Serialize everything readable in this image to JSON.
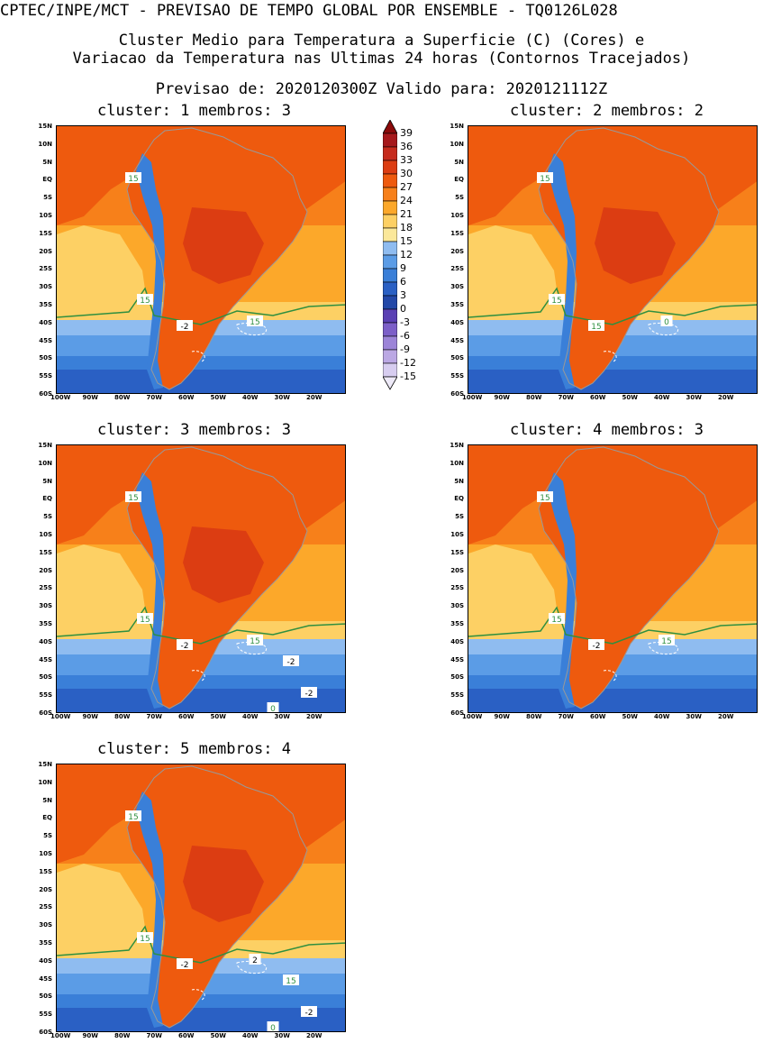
{
  "header": {
    "line1": "CPTEC/INPE/MCT - PREVISAO DE TEMPO GLOBAL POR ENSEMBLE - TQ0126L028",
    "line2": "Cluster Medio para Temperatura a Superficie (C) (Cores) e",
    "line3": "Variacao da Temperatura nas Ultimas 24 horas (Contornos Tracejados)",
    "line4": "Previsao de: 2020120300Z    Valido para: 2020121112Z"
  },
  "panels": [
    {
      "title": "cluster: 1   membros: 3",
      "labels": [
        "15",
        "15",
        "-2",
        "15"
      ]
    },
    {
      "title": "cluster: 2   membros: 2",
      "labels": [
        "15",
        "15",
        "15",
        "0"
      ]
    },
    {
      "title": "cluster: 3   membros: 3",
      "labels": [
        "15",
        "15",
        "-2",
        "15",
        "-2",
        "-2",
        "0"
      ]
    },
    {
      "title": "cluster: 4   membros: 3",
      "labels": [
        "15",
        "15",
        "-2",
        "15"
      ]
    },
    {
      "title": "cluster: 5   membros: 4",
      "labels": [
        "15",
        "15",
        "-2",
        "2",
        "15",
        "-2",
        "0"
      ]
    }
  ],
  "axes": {
    "y_ticks": [
      "15N",
      "10N",
      "5N",
      "EQ",
      "5S",
      "10S",
      "15S",
      "20S",
      "25S",
      "30S",
      "35S",
      "40S",
      "45S",
      "50S",
      "55S",
      "60S"
    ],
    "x_ticks": [
      "100W",
      "90W",
      "80W",
      "70W",
      "60W",
      "50W",
      "40W",
      "30W",
      "20W"
    ]
  },
  "colorbar": {
    "levels": [
      "39",
      "36",
      "33",
      "30",
      "27",
      "24",
      "21",
      "18",
      "15",
      "12",
      "9",
      "6",
      "3",
      "0",
      "-3",
      "-6",
      "-9",
      "-12",
      "-15"
    ],
    "colors": [
      "#8b0a0a",
      "#a6191c",
      "#c62b1d",
      "#dc3d12",
      "#ee5a0e",
      "#f7801a",
      "#fca82a",
      "#fdd064",
      "#fbe89a",
      "#8fbcf0",
      "#5b9ce6",
      "#3a7fd8",
      "#2a60c4",
      "#2348a8",
      "#5a40b4",
      "#7c5fc8",
      "#9c84d8",
      "#bba8e4",
      "#d7cdf0",
      "#eeeaf8"
    ]
  },
  "colors": {
    "contour15": "#2f8f3f",
    "dashed": "#ffffff",
    "coast": "#999999"
  }
}
